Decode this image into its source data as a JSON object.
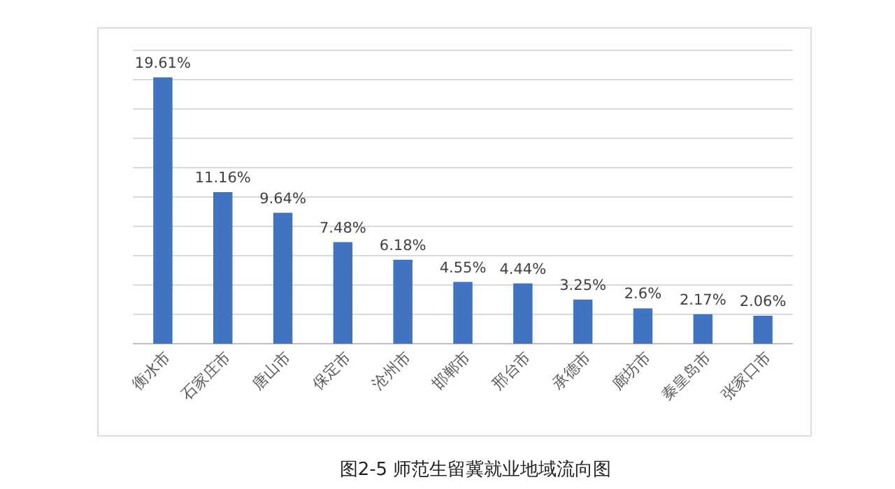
{
  "chart_data": {
    "type": "bar",
    "title": "图2-5 师范生留冀就业地域流向图",
    "categories": [
      "衡水市",
      "石家庄市",
      "唐山市",
      "保定市",
      "沧州市",
      "邯郸市",
      "邢台市",
      "承德市",
      "廊坊市",
      "秦皇岛市",
      "张家口市"
    ],
    "values": [
      19.61,
      11.16,
      9.64,
      7.48,
      6.18,
      4.55,
      4.44,
      3.25,
      2.6,
      2.17,
      2.06
    ],
    "value_labels": [
      "19.61%",
      "11.16%",
      "9.64%",
      "7.48%",
      "6.18%",
      "4.55%",
      "4.44%",
      "3.25%",
      "2.6%",
      "2.17%",
      "2.06%"
    ],
    "color": "#4174c0",
    "ylim": [
      0,
      21.6
    ],
    "yticks": [
      {
        "value": 0,
        "label": null
      },
      {
        "value": 2.16,
        "label": null
      },
      {
        "value": 4.32,
        "label": null
      },
      {
        "value": 6.48,
        "label": null
      },
      {
        "value": 8.64,
        "label": null
      },
      {
        "value": 10.8,
        "label": null
      },
      {
        "value": 12.96,
        "label": null
      },
      {
        "value": 15.12,
        "label": null
      },
      {
        "value": 17.28,
        "label": null
      },
      {
        "value": 19.44,
        "label": null
      },
      {
        "value": 21.6,
        "label": null
      }
    ],
    "grid": "y",
    "tick_labels": "x"
  }
}
